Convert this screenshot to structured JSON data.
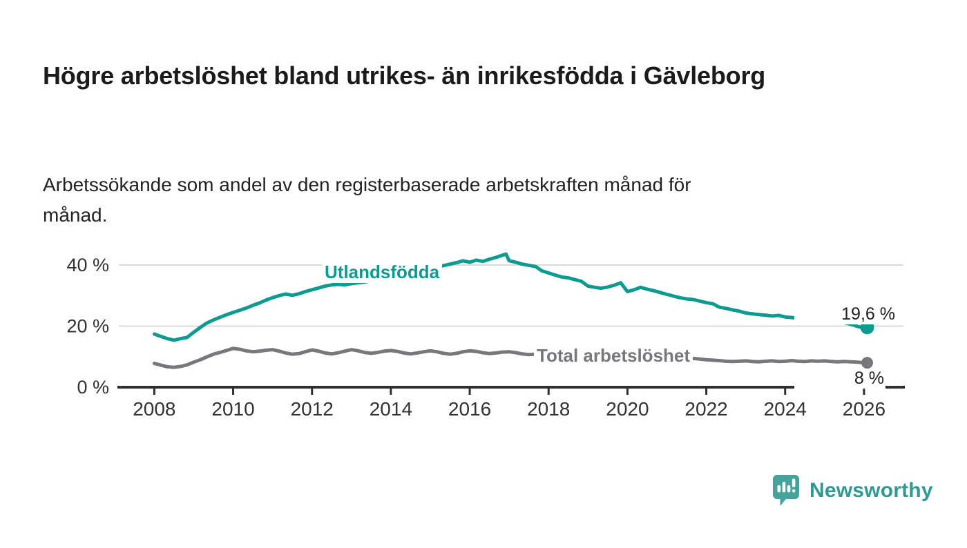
{
  "header": {
    "title": "Högre arbetslöshet bland utrikes- än inrikesfödda i Gävleborg",
    "subtitle": "Arbetssökande som andel av den registerbaserade arbetskraften månad för månad."
  },
  "branding": {
    "logo_text": "Newsworthy",
    "logo_icon": "speech-bubble-bar-chart-exclamation",
    "logo_color": "#46A39C",
    "logo_text_color": "#2F9A93"
  },
  "colors": {
    "accent_teal": "#0E9B8F",
    "neutral_gray": "#77777C",
    "gridline": "#D9D9D9",
    "axis": "#2E2E2E",
    "tick_text": "#333333"
  },
  "chart_data": {
    "type": "line",
    "title": "Högre arbetslöshet bland utrikes- än inrikesfödda i Gävleborg",
    "subtitle": "Arbetssökande som andel av den registerbaserade arbetskraften månad för månad.",
    "unit": "%",
    "grid": true,
    "legend_position": "inline-labels",
    "x_axis": {
      "range": [
        2007.1,
        2027.0
      ],
      "ticks": [
        2008,
        2010,
        2012,
        2014,
        2016,
        2018,
        2020,
        2022,
        2024,
        2026
      ],
      "tick_labels": [
        "2008",
        "2010",
        "2012",
        "2014",
        "2016",
        "2018",
        "2020",
        "2022",
        "2024",
        "2026"
      ]
    },
    "y_axis": {
      "range": [
        0,
        45.5
      ],
      "ticks": [
        0,
        20,
        40
      ],
      "tick_labels": [
        "0 %",
        "20 %",
        "40 %"
      ]
    },
    "series": [
      {
        "name": "Utlandsfödda",
        "color": "#0E9B8F",
        "end_label": "19,6 %",
        "end_value": 19.6,
        "points": [
          [
            2008.0,
            17.4
          ],
          [
            2008.17,
            16.6
          ],
          [
            2008.33,
            15.9
          ],
          [
            2008.5,
            15.4
          ],
          [
            2008.67,
            15.9
          ],
          [
            2008.83,
            16.3
          ],
          [
            2009.0,
            18.0
          ],
          [
            2009.17,
            19.6
          ],
          [
            2009.33,
            21.0
          ],
          [
            2009.5,
            22.0
          ],
          [
            2009.67,
            22.9
          ],
          [
            2009.83,
            23.7
          ],
          [
            2010.0,
            24.5
          ],
          [
            2010.17,
            25.2
          ],
          [
            2010.33,
            25.9
          ],
          [
            2010.5,
            26.8
          ],
          [
            2010.67,
            27.6
          ],
          [
            2010.83,
            28.5
          ],
          [
            2011.0,
            29.3
          ],
          [
            2011.17,
            30.0
          ],
          [
            2011.33,
            30.5
          ],
          [
            2011.5,
            30.1
          ],
          [
            2011.67,
            30.6
          ],
          [
            2011.83,
            31.3
          ],
          [
            2012.0,
            31.9
          ],
          [
            2012.17,
            32.5
          ],
          [
            2012.33,
            33.1
          ],
          [
            2012.5,
            33.5
          ],
          [
            2012.67,
            33.7
          ],
          [
            2012.83,
            33.5
          ],
          [
            2013.0,
            33.9
          ],
          [
            2013.17,
            34.2
          ],
          [
            2013.33,
            34.4
          ],
          [
            2013.5,
            34.9
          ],
          [
            2013.67,
            35.4
          ],
          [
            2013.83,
            35.9
          ],
          [
            2014.0,
            36.4
          ],
          [
            2014.17,
            36.9
          ],
          [
            2014.33,
            37.3
          ],
          [
            2014.5,
            37.8
          ],
          [
            2014.67,
            38.2
          ],
          [
            2014.83,
            38.6
          ],
          [
            2015.0,
            39.0
          ],
          [
            2015.17,
            39.4
          ],
          [
            2015.33,
            39.8
          ],
          [
            2015.5,
            40.3
          ],
          [
            2015.67,
            40.8
          ],
          [
            2015.83,
            41.4
          ],
          [
            2016.0,
            40.9
          ],
          [
            2016.17,
            41.6
          ],
          [
            2016.33,
            41.2
          ],
          [
            2016.5,
            41.9
          ],
          [
            2016.67,
            42.5
          ],
          [
            2016.83,
            43.2
          ],
          [
            2016.92,
            43.6
          ],
          [
            2017.0,
            41.4
          ],
          [
            2017.17,
            40.9
          ],
          [
            2017.33,
            40.3
          ],
          [
            2017.5,
            39.9
          ],
          [
            2017.67,
            39.5
          ],
          [
            2017.83,
            38.1
          ],
          [
            2018.0,
            37.4
          ],
          [
            2018.17,
            36.7
          ],
          [
            2018.33,
            36.1
          ],
          [
            2018.5,
            35.8
          ],
          [
            2018.67,
            35.2
          ],
          [
            2018.83,
            34.7
          ],
          [
            2019.0,
            33.1
          ],
          [
            2019.17,
            32.7
          ],
          [
            2019.33,
            32.4
          ],
          [
            2019.5,
            32.8
          ],
          [
            2019.67,
            33.4
          ],
          [
            2019.83,
            34.2
          ],
          [
            2020.0,
            31.3
          ],
          [
            2020.17,
            31.9
          ],
          [
            2020.33,
            32.7
          ],
          [
            2020.5,
            32.1
          ],
          [
            2020.67,
            31.6
          ],
          [
            2020.83,
            31.0
          ],
          [
            2021.0,
            30.4
          ],
          [
            2021.17,
            29.8
          ],
          [
            2021.33,
            29.3
          ],
          [
            2021.5,
            28.9
          ],
          [
            2021.67,
            28.7
          ],
          [
            2021.83,
            28.2
          ],
          [
            2022.0,
            27.7
          ],
          [
            2022.17,
            27.3
          ],
          [
            2022.33,
            26.2
          ],
          [
            2022.5,
            25.8
          ],
          [
            2022.67,
            25.3
          ],
          [
            2022.83,
            24.9
          ],
          [
            2023.0,
            24.3
          ],
          [
            2023.17,
            24.0
          ],
          [
            2023.33,
            23.8
          ],
          [
            2023.5,
            23.6
          ],
          [
            2023.67,
            23.3
          ],
          [
            2023.83,
            23.5
          ],
          [
            2024.0,
            23.0
          ],
          [
            2024.17,
            22.8
          ],
          [
            2024.33,
            22.6
          ],
          [
            2024.5,
            22.9
          ],
          [
            2024.67,
            23.1
          ],
          [
            2024.83,
            23.4
          ],
          [
            2025.0,
            22.6
          ],
          [
            2025.17,
            22.0
          ],
          [
            2025.33,
            21.6
          ],
          [
            2025.5,
            21.1
          ],
          [
            2025.67,
            20.6
          ],
          [
            2025.83,
            19.9
          ],
          [
            2026.0,
            19.4
          ],
          [
            2026.08,
            19.6
          ]
        ]
      },
      {
        "name": "Total arbetslöshet",
        "color": "#77777C",
        "end_label": "8 %",
        "end_value": 8.0,
        "points": [
          [
            2008.0,
            7.8
          ],
          [
            2008.17,
            7.2
          ],
          [
            2008.33,
            6.7
          ],
          [
            2008.5,
            6.5
          ],
          [
            2008.67,
            6.8
          ],
          [
            2008.83,
            7.3
          ],
          [
            2009.0,
            8.2
          ],
          [
            2009.17,
            9.0
          ],
          [
            2009.33,
            9.9
          ],
          [
            2009.5,
            10.8
          ],
          [
            2009.67,
            11.4
          ],
          [
            2009.83,
            12.0
          ],
          [
            2010.0,
            12.7
          ],
          [
            2010.17,
            12.4
          ],
          [
            2010.33,
            11.9
          ],
          [
            2010.5,
            11.6
          ],
          [
            2010.67,
            11.8
          ],
          [
            2010.83,
            12.1
          ],
          [
            2011.0,
            12.3
          ],
          [
            2011.17,
            11.8
          ],
          [
            2011.33,
            11.2
          ],
          [
            2011.5,
            10.8
          ],
          [
            2011.67,
            11.0
          ],
          [
            2011.83,
            11.6
          ],
          [
            2012.0,
            12.2
          ],
          [
            2012.17,
            11.8
          ],
          [
            2012.33,
            11.2
          ],
          [
            2012.5,
            10.9
          ],
          [
            2012.67,
            11.3
          ],
          [
            2012.83,
            11.8
          ],
          [
            2013.0,
            12.3
          ],
          [
            2013.17,
            11.9
          ],
          [
            2013.33,
            11.4
          ],
          [
            2013.5,
            11.1
          ],
          [
            2013.67,
            11.4
          ],
          [
            2013.83,
            11.8
          ],
          [
            2014.0,
            12.0
          ],
          [
            2014.17,
            11.7
          ],
          [
            2014.33,
            11.2
          ],
          [
            2014.5,
            10.9
          ],
          [
            2014.67,
            11.2
          ],
          [
            2014.83,
            11.6
          ],
          [
            2015.0,
            11.9
          ],
          [
            2015.17,
            11.6
          ],
          [
            2015.33,
            11.1
          ],
          [
            2015.5,
            10.8
          ],
          [
            2015.67,
            11.1
          ],
          [
            2015.83,
            11.6
          ],
          [
            2016.0,
            11.9
          ],
          [
            2016.17,
            11.7
          ],
          [
            2016.33,
            11.3
          ],
          [
            2016.5,
            11.0
          ],
          [
            2016.67,
            11.2
          ],
          [
            2016.83,
            11.5
          ],
          [
            2017.0,
            11.6
          ],
          [
            2017.17,
            11.3
          ],
          [
            2017.33,
            10.9
          ],
          [
            2017.5,
            10.7
          ],
          [
            2017.67,
            10.8
          ],
          [
            2017.83,
            11.0
          ],
          [
            2018.0,
            11.0
          ],
          [
            2018.25,
            10.5
          ],
          [
            2018.5,
            10.2
          ],
          [
            2018.75,
            10.4
          ],
          [
            2019.0,
            10.5
          ],
          [
            2019.25,
            10.1
          ],
          [
            2019.5,
            9.9
          ],
          [
            2019.75,
            10.1
          ],
          [
            2020.0,
            10.2
          ],
          [
            2020.25,
            10.6
          ],
          [
            2020.42,
            10.9
          ],
          [
            2020.67,
            10.6
          ],
          [
            2021.0,
            10.3
          ],
          [
            2021.33,
            9.8
          ],
          [
            2021.67,
            9.4
          ],
          [
            2022.0,
            9.0
          ],
          [
            2022.33,
            8.7
          ],
          [
            2022.5,
            8.5
          ],
          [
            2022.67,
            8.4
          ],
          [
            2022.83,
            8.5
          ],
          [
            2023.0,
            8.6
          ],
          [
            2023.17,
            8.4
          ],
          [
            2023.33,
            8.3
          ],
          [
            2023.5,
            8.5
          ],
          [
            2023.67,
            8.6
          ],
          [
            2023.83,
            8.4
          ],
          [
            2024.0,
            8.5
          ],
          [
            2024.17,
            8.7
          ],
          [
            2024.33,
            8.5
          ],
          [
            2024.5,
            8.4
          ],
          [
            2024.67,
            8.6
          ],
          [
            2024.83,
            8.5
          ],
          [
            2025.0,
            8.6
          ],
          [
            2025.17,
            8.4
          ],
          [
            2025.33,
            8.3
          ],
          [
            2025.5,
            8.4
          ],
          [
            2025.67,
            8.3
          ],
          [
            2025.83,
            8.2
          ],
          [
            2026.0,
            8.0
          ],
          [
            2026.08,
            8.0
          ]
        ]
      }
    ]
  }
}
